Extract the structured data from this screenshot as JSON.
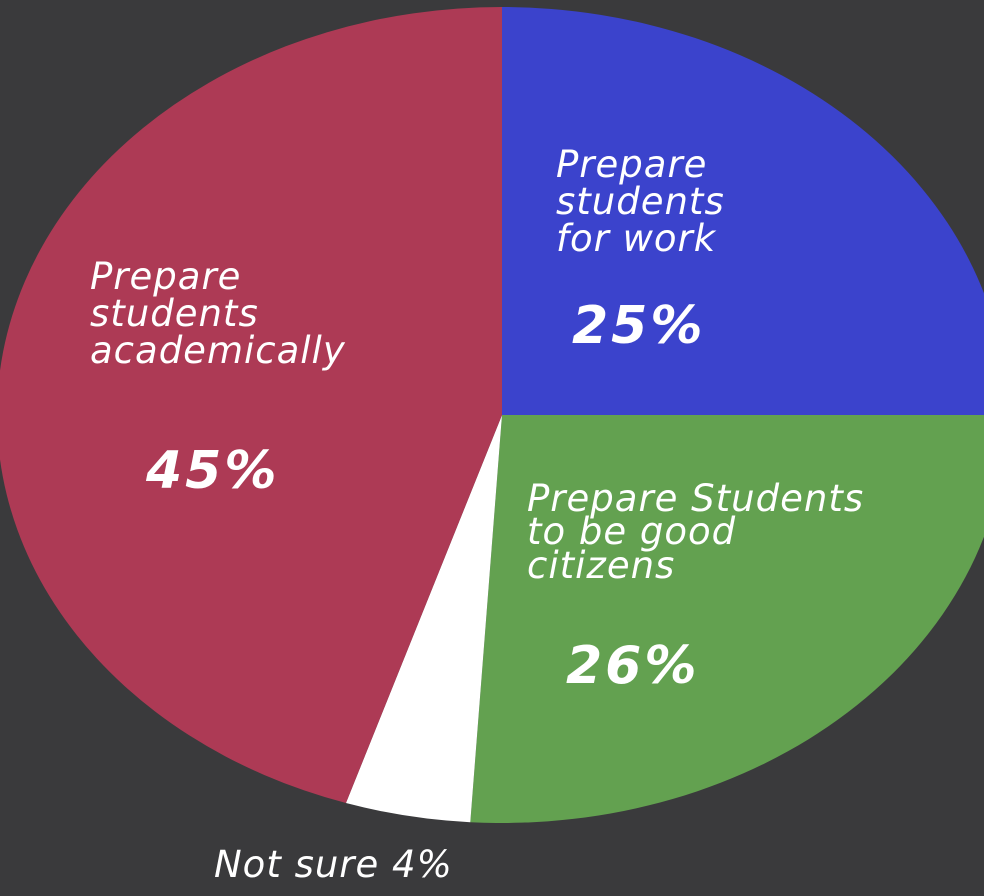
{
  "chart_data": {
    "type": "pie",
    "slices": [
      {
        "label": "Prepare students for work",
        "value": 25,
        "color": "#3b43cc",
        "pct_label": "25%"
      },
      {
        "label": "Prepare Students to be good citizens",
        "value": 26,
        "color": "#63a150",
        "pct_label": "26%"
      },
      {
        "label": "Not sure",
        "value": 4,
        "color": "#ffffff",
        "pct_label": "4%"
      },
      {
        "label": "Prepare students academically",
        "value": 45,
        "color": "#ad3a55",
        "pct_label": "45%"
      }
    ]
  },
  "labels": {
    "work": {
      "line1": "Prepare",
      "line2": "students",
      "line3": "for work",
      "pct": "25%"
    },
    "citizens": {
      "line1": "Prepare Students",
      "line2": "to be good",
      "line3": "citizens",
      "pct": "26%"
    },
    "academic": {
      "line1": "Prepare",
      "line2": "students",
      "line3": "academically",
      "pct": "45%"
    },
    "notsure": {
      "text": "Not sure 4%"
    }
  }
}
